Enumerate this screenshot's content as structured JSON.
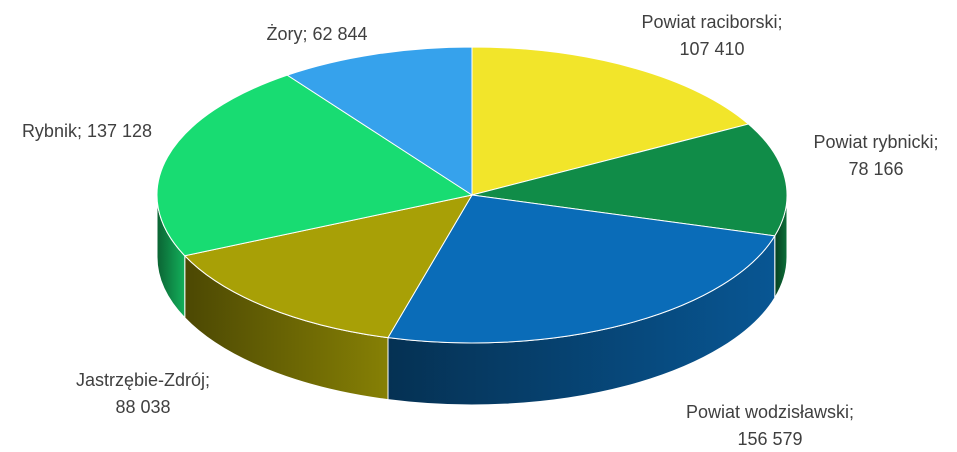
{
  "chart_data": {
    "type": "pie3d",
    "categories": [
      "Powiat raciborski;",
      "Powiat rybnicki;",
      "Powiat wodzisławski;",
      "Jastrzębie-Zdrój;",
      "Rybnik;",
      "Żory;"
    ],
    "values": [
      107410,
      78166,
      156579,
      88038,
      137128,
      62844
    ],
    "value_labels": [
      "107 410",
      "78 166",
      "156 579",
      "88 038",
      "137 128",
      "62 844"
    ],
    "colors": [
      "#f2e52a",
      "#108c48",
      "#0a6cb8",
      "#a8a006",
      "#18dc72",
      "#36a2ec"
    ]
  }
}
